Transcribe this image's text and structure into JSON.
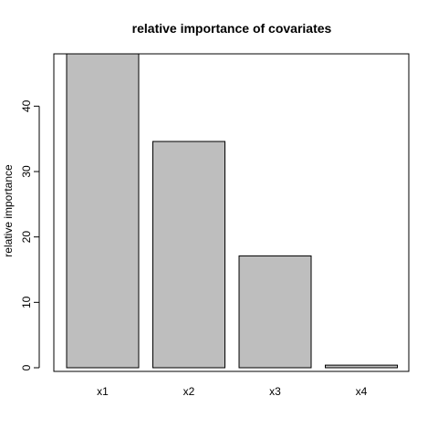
{
  "chart_data": {
    "type": "bar",
    "title": "relative importance of covariates",
    "xlabel": "",
    "ylabel": "relative importance",
    "categories": [
      "x1",
      "x2",
      "x3",
      "x4"
    ],
    "values": [
      48.0,
      34.6,
      17.1,
      0.4
    ],
    "ylim": [
      0,
      48
    ],
    "yticks": [
      0,
      10,
      20,
      30,
      40
    ],
    "bar_fill": "#bebebe",
    "bar_stroke": "#000000",
    "grid": false,
    "legend": "none"
  }
}
